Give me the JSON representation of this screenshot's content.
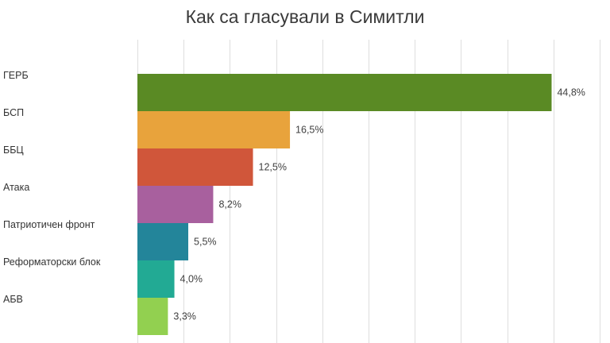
{
  "chart_data": {
    "type": "bar",
    "orientation": "horizontal",
    "title": "Как са гласували в Симитли",
    "categories": [
      "ГЕРБ",
      "БСП",
      "ББЦ",
      "Атака",
      "Патриотичен  фронт",
      "Реформаторски блок",
      "АБВ"
    ],
    "values": [
      44.8,
      16.5,
      12.5,
      8.2,
      5.5,
      4.0,
      3.3
    ],
    "value_labels": [
      "44,8%",
      "16,5%",
      "12,5%",
      "8,2%",
      "5,5%",
      "4,0%",
      "3,3%"
    ],
    "colors": [
      "#5a8a24",
      "#e8a33c",
      "#d0563a",
      "#a8609e",
      "#23859a",
      "#22aa94",
      "#92d050"
    ],
    "xlim": [
      0,
      50
    ],
    "xgrid_step": 5,
    "grid": true,
    "legend": "none"
  }
}
